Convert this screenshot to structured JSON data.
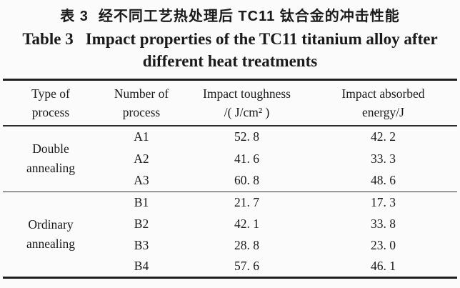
{
  "colors": {
    "ink": "#1a1a1a",
    "rule": "#1f1f1f",
    "background": "#fbfbfb"
  },
  "title": {
    "zh_label": "表 3",
    "zh_text": "经不同工艺热处理后 TC11 钛合金的冲击性能",
    "en_label": "Table 3",
    "en_text_line1": "Impact properties of the TC11 titanium alloy after",
    "en_text_line2": "different heat treatments"
  },
  "table": {
    "columns": [
      {
        "line1": "Type of",
        "line2": "process"
      },
      {
        "line1": "Number of",
        "line2": "process"
      },
      {
        "line1": "Impact toughness",
        "line2": "/( J/cm² )"
      },
      {
        "line1": "Impact absorbed",
        "line2": "energy/J"
      }
    ],
    "groups": [
      {
        "type": "Double annealing",
        "rows": [
          {
            "number": "A1",
            "toughness": "52. 8",
            "energy": "42. 2"
          },
          {
            "number": "A2",
            "toughness": "41. 6",
            "energy": "33. 3"
          },
          {
            "number": "A3",
            "toughness": "60. 8",
            "energy": "48. 6"
          }
        ]
      },
      {
        "type": "Ordinary annealing",
        "rows": [
          {
            "number": "B1",
            "toughness": "21. 7",
            "energy": "17. 3"
          },
          {
            "number": "B2",
            "toughness": "42. 1",
            "energy": "33. 8"
          },
          {
            "number": "B3",
            "toughness": "28. 8",
            "energy": "23. 0"
          },
          {
            "number": "B4",
            "toughness": "57. 6",
            "energy": "46. 1"
          }
        ]
      }
    ]
  }
}
